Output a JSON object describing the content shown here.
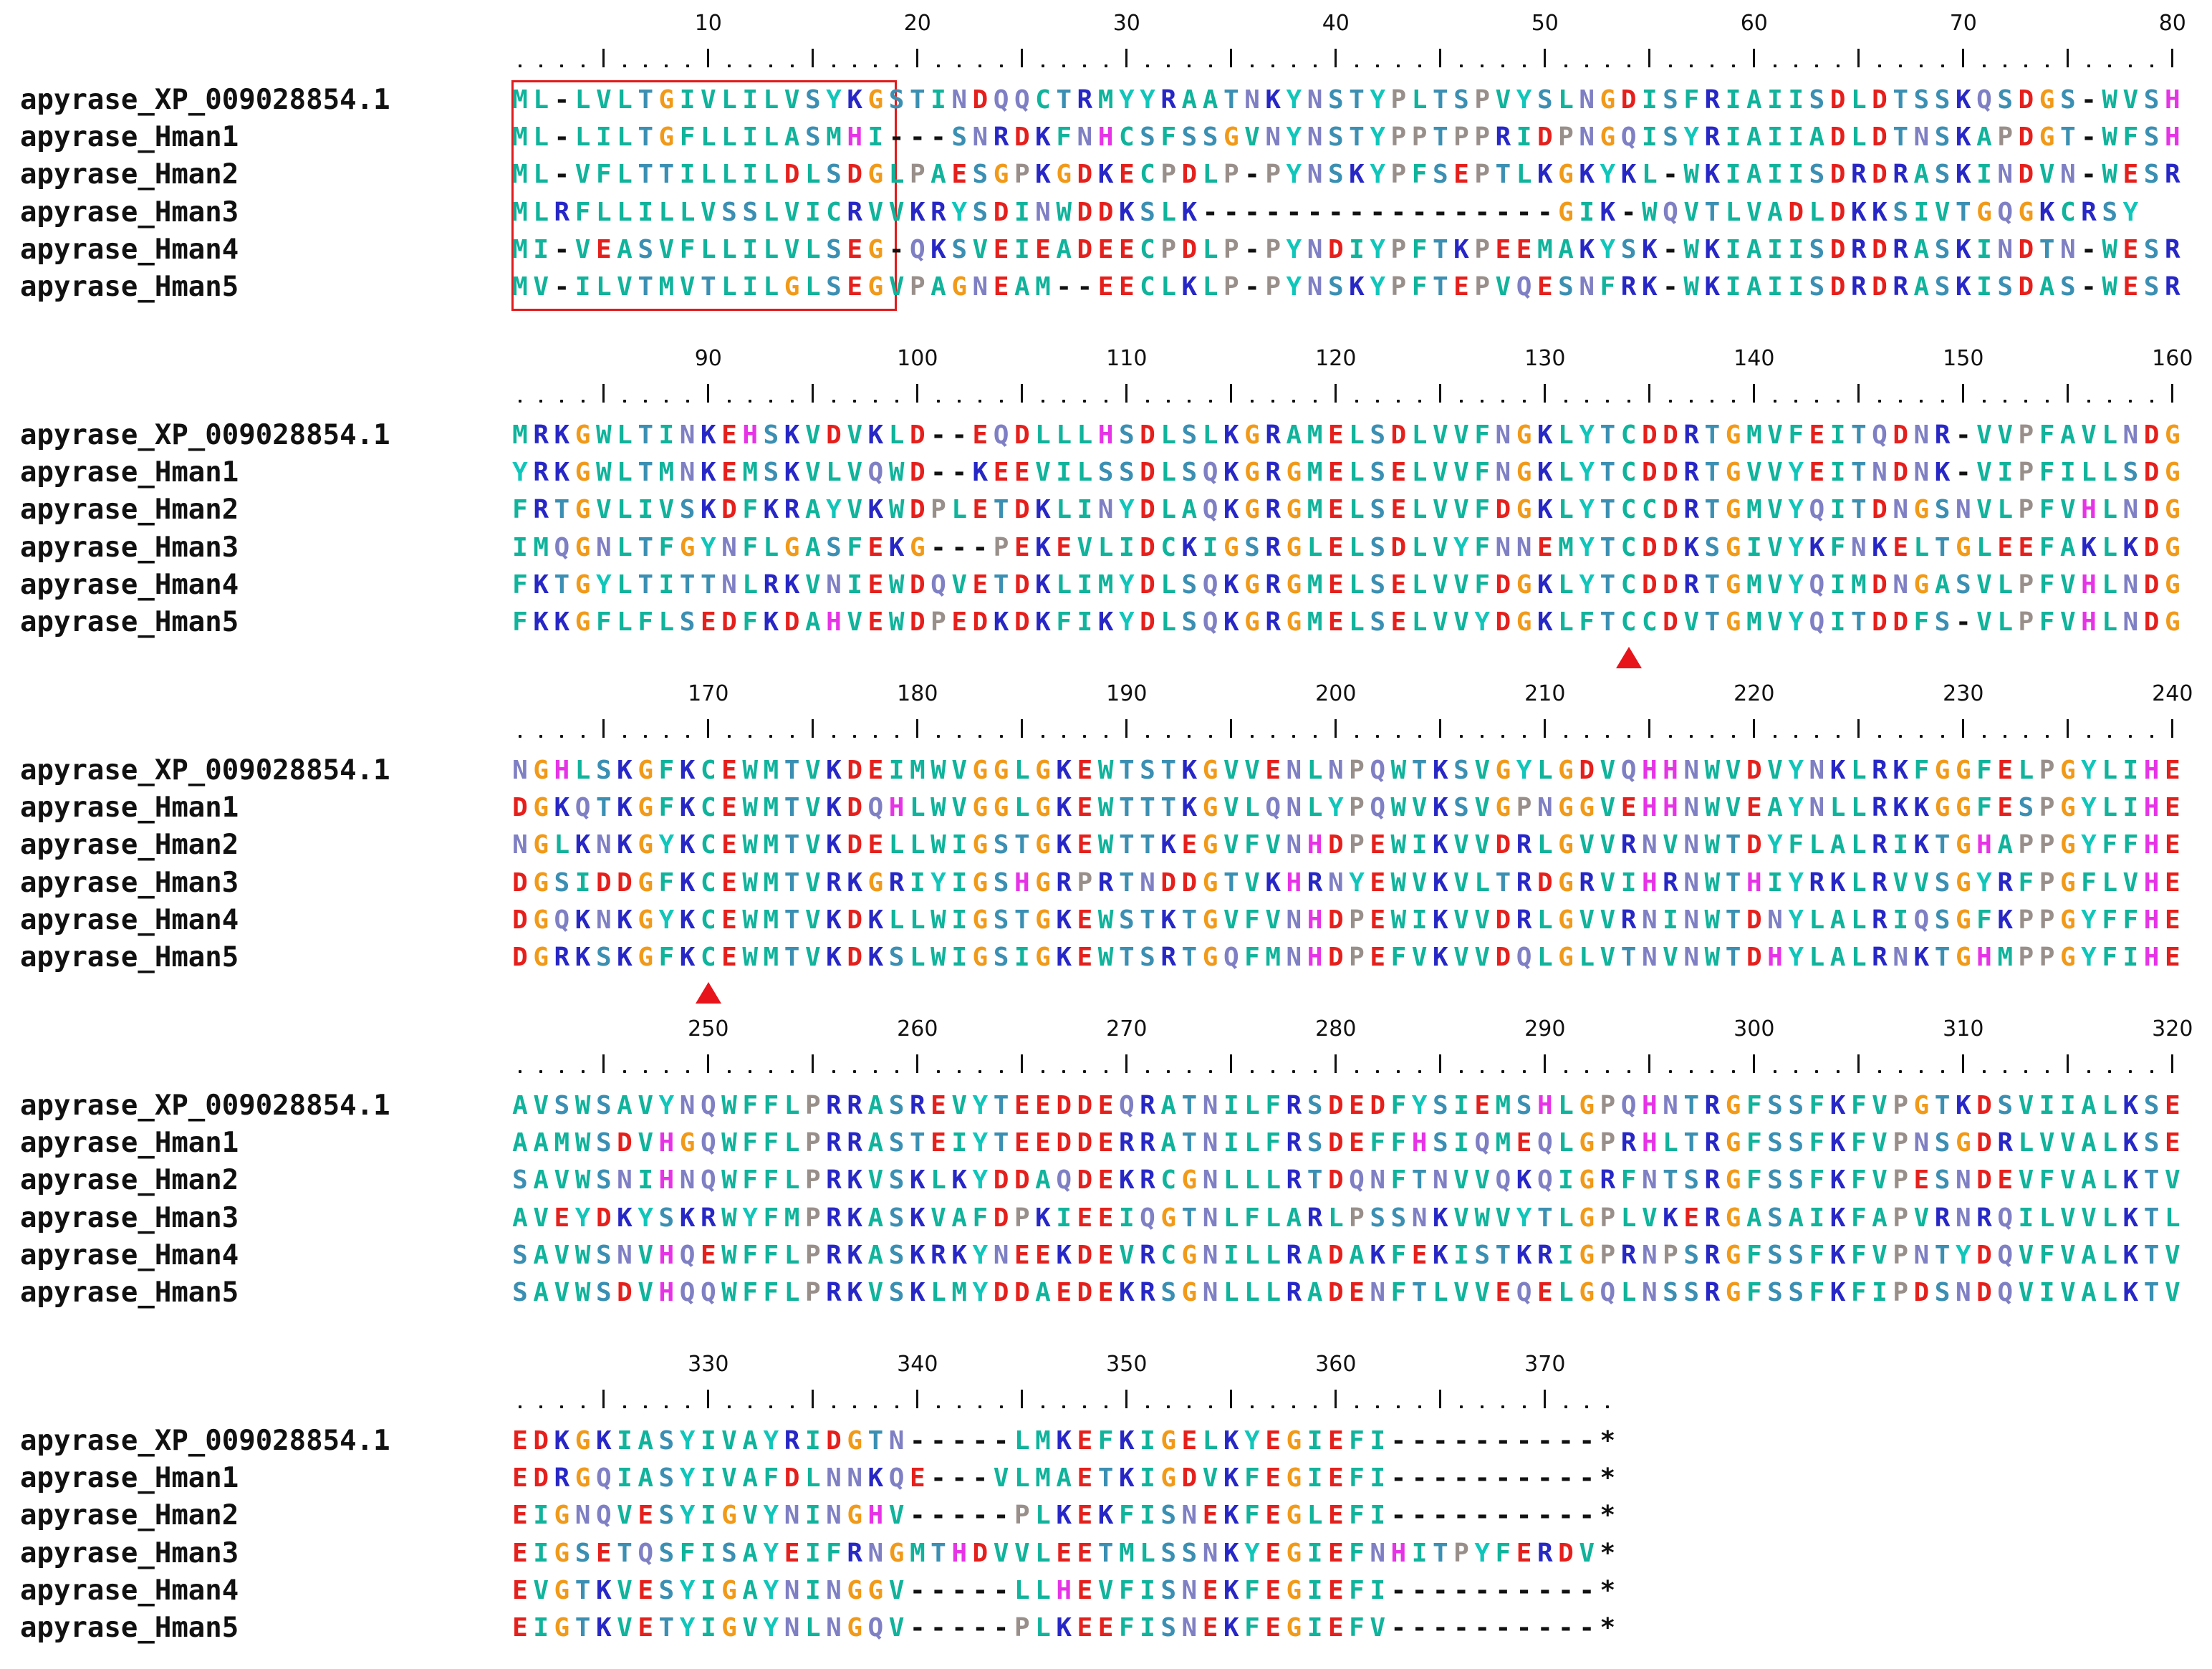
{
  "figure": {
    "block_ruler_numbers": [
      [
        "10",
        "20",
        "30",
        "40",
        "50",
        "60",
        "70",
        "80"
      ],
      [
        "90",
        "100",
        "110",
        "120",
        "130",
        "140",
        "150",
        "160"
      ],
      [
        "170",
        "180",
        "190",
        "200",
        "210",
        "220",
        "230",
        "240"
      ],
      [
        "250",
        "260",
        "270",
        "280",
        "290",
        "300",
        "310",
        "320"
      ],
      [
        "330",
        "340",
        "350",
        "360",
        "370"
      ]
    ],
    "blocks": [
      {
        "rows": [
          {
            "name": "apyrase_XP_009028854.1",
            "seq": "ML-LVLTGIVLILVSYKGSTINDQQCTRMYYRAATNKYNSTYPLTSPVYSLNGDISFRIAIISDLDTSSKQSDGS-WVSH"
          },
          {
            "name": "apyrase_Hman1",
            "seq": "ML-LILTGFLLILASMHI---SNRDKFNHCSFSSGVNYNSTYPPTPPRIDPNGQISYRIAIIADLDTNSKAPDGT-WFSH"
          },
          {
            "name": "apyrase_Hman2",
            "seq": "ML-VFLTTILLILDLSDGLPAESGPKGDKECPDLP-PYNSKYPFSEPTLKGKYKL-WKIAIISDRDRASKINDVN-WESR"
          },
          {
            "name": "apyrase_Hman3",
            "seq": "MLRFLLILLVSSLVICRVVKRYSDINWDDKSLK-----------------GIK-WQVTLVADLDKKSIVTGQGKCRSY"
          },
          {
            "name": "apyrase_Hman4",
            "seq": "MI-VEASVFLLILVLSEG-QKSVEIEADEECPDLP-PYNDIYPFTKPEEMAKYSK-WKIAIISDRDRASKINDTN-WESR"
          },
          {
            "name": "apyrase_Hman5",
            "seq": "MV-ILVTMVTLILGLSEGVPAGNEAM--EECLKLP-PYNSKYPFTEPVQESNFRK-WKIAIISDRDRASKISDAS-WESR"
          }
        ]
      },
      {
        "rows": [
          {
            "name": "apyrase_XP_009028854.1",
            "seq": "MRKGWLTINKEHSKVDVKLD--EQDLLLHSDLSLKGRAMELSDLVVFNGKLYTCDDRTGMVFEITQDNR-VVPFAVLNDG"
          },
          {
            "name": "apyrase_Hman1",
            "seq": "YRKGWLTMNKEMSKVLVQWD--KEEVILSSDLSQKGRGMELSELVVFNGKLYTCDDRTGVVYEITNDNK-VIPFILLSDG"
          },
          {
            "name": "apyrase_Hman2",
            "seq": "FRTGVLIVSKDFKRAYVKWDPLETDKLINYDLAQKGRGMELSELVVFDGKLYTCCDRTGMVYQITDNGSNVLPFVHLNDG"
          },
          {
            "name": "apyrase_Hman3",
            "seq": "IMQGNLTFGYNFLGASFEKG---PEKEVLIDCKIGSRGLELSDLVYFNNEMYTCDDKSGIVYKFNKELTGLEEFAKLKDG"
          },
          {
            "name": "apyrase_Hman4",
            "seq": "FKTGYLTITTNLRKVNIEWDQVETDKLIMYDLSQKGRGMELSELVVFDGKLYTCDDRTGMVYQIMDNGASVLPFVHLNDG"
          },
          {
            "name": "apyrase_Hman5",
            "seq": "FKKGFLFLSEDFKDAHVEWDPEDKDKFIKYDLSQKGRGMELSELVVYDGKLFTCCDVTGMVYQITDDFS-VLPFVHLNDG"
          }
        ]
      },
      {
        "rows": [
          {
            "name": "apyrase_XP_009028854.1",
            "seq": "NGHLSKGFKCEWMTVKDEIMWVGGLGKEWTSTKGVVENLNPQWTKSVGYLGDVQHHNWVDVYNKLRKFGGFELPGYLIHE"
          },
          {
            "name": "apyrase_Hman1",
            "seq": "DGKQTKGFKCEWMTVKDQHLWVGGLGKEWTTTKGVLQNLYPQWVKSVGPNGGVEHHNWVEAYNLLRKKGGFESPGYLIHE"
          },
          {
            "name": "apyrase_Hman2",
            "seq": "NGLKNKGYKCEWMTVKDELLWIGSTGKEWTTKEGVFVNHDPEWIKVVDRLGVVRNVNWTDYFLALRIKTGHAPPGYFFHE"
          },
          {
            "name": "apyrase_Hman3",
            "seq": "DGSIDDGFKCEWMTVRKGRIYIGSHGRPRTNDDGTVKHRNYEWVKVLTRDGRVIHRNWTHIYRKLRVVSGYRFPGFLVHE"
          },
          {
            "name": "apyrase_Hman4",
            "seq": "DGQKNKGYKCEWMTVKDKLLWIGSTGKEWSTKTGVFVNHDPEWIKVVDRLGVVRNINWTDNYLALRIQSGFKPPGYFFHE"
          },
          {
            "name": "apyrase_Hman5",
            "seq": "DGRKSKGFKCEWMTVKDKSLWIGSIGKEWTSRTGQFMNHDPEFVKVVDQLGLVTNVNWTDHYLALRNKTGHMPPGYFIHE"
          }
        ]
      },
      {
        "rows": [
          {
            "name": "apyrase_XP_009028854.1",
            "seq": "AVSWSAVYNQWFFLPRRASREVYTEEDDEQRATNILFRSDEDFYSIEMSHLGPQHNTRGFSSFKFVPGTKDSVIIALKSE"
          },
          {
            "name": "apyrase_Hman1",
            "seq": "AAMWSDVHGQWFFLPRRASTEIYTEEDDERRATNILFRSDEFFHSIQMEQLGPRHLTRGFSSFKFVPNSGDRLVVALKSE"
          },
          {
            "name": "apyrase_Hman2",
            "seq": "SAVWSNIHNQWFFLPRKVSKLKYDDAQDEKRCGNLLLRTDQNFTNVVQKQIGRFNTSRGFSSFKFVPESNDEVFVALKTV"
          },
          {
            "name": "apyrase_Hman3",
            "seq": "AVEYDKYSKRWYFMPRKASKVAFDPKIEEIQGTNLFLARLPSSNKVWVYTLGPLVKERGASAIKFAPVRNRQILVVLKTL"
          },
          {
            "name": "apyrase_Hman4",
            "seq": "SAVWSNVHQEWFFLPRKASKRKYNEEKDEVRCGNILLRADAKFEKISTKRIGPRNPSRGFSSFKFVPNTYDQVFVALKTV"
          },
          {
            "name": "apyrase_Hman5",
            "seq": "SAVWSDVHQQWFFLPRKVSKLMYDDAEDEKRSGNLLLRADENFTLVVEQELGQLNSSRGFSSFKFIPDSNDQVIVALKTV"
          }
        ]
      },
      {
        "rows": [
          {
            "name": "apyrase_XP_009028854.1",
            "seq": "EDKGKIASYIVAYRIDGTN-----LMKEFKIGELKYEGIEFI----------*"
          },
          {
            "name": "apyrase_Hman1",
            "seq": "EDRGQIASYIVAFDLNNKQE---VLMAETKIGDVKFEGIEFI----------*"
          },
          {
            "name": "apyrase_Hman2",
            "seq": "EIGNQVESYIGVYNINGHV-----PLKEKFISNEKFEGLEFI----------*"
          },
          {
            "name": "apyrase_Hman3",
            "seq": "EIGSETQSFISAYEIFRNGMTHDVVLEETMLSSNKYEGIEFNHITPYFERDV*"
          },
          {
            "name": "apyrase_Hman4",
            "seq": "EVGTKVESYIGAYNINGGV-----LLHEVFISNEKFEGIEFI----------*"
          },
          {
            "name": "apyrase_Hman5",
            "seq": "EIGTKVETYIGVYNLNGQV-----PLKEEFISNEKFEGIEFV----------*"
          }
        ]
      }
    ],
    "markers": [
      {
        "block": 1,
        "column": 54,
        "shape": "red-triangle"
      },
      {
        "block": 2,
        "column": 10,
        "shape": "red-triangle"
      }
    ],
    "highlight_box": {
      "block": 0,
      "from_column": 1,
      "to_column": 18,
      "color": "#e21a1a"
    },
    "residue_colors": {
      "A": "#10b39b",
      "I": "#10b39b",
      "L": "#10b39b",
      "M": "#10b39b",
      "V": "#10b39b",
      "F": "#10b39b",
      "W": "#10b39b",
      "C": "#10b39b",
      "D": "#e5201c",
      "E": "#e5201c",
      "K": "#2727c6",
      "R": "#2727c6",
      "H": "#e633e6",
      "N": "#7f7fc4",
      "Q": "#7f7fc4",
      "S": "#3b8fb2",
      "T": "#3b8fb2",
      "G": "#f19a19",
      "P": "#998f8a",
      "Y": "#10c6ba",
      "-": "#111111",
      "*": "#111111"
    }
  }
}
